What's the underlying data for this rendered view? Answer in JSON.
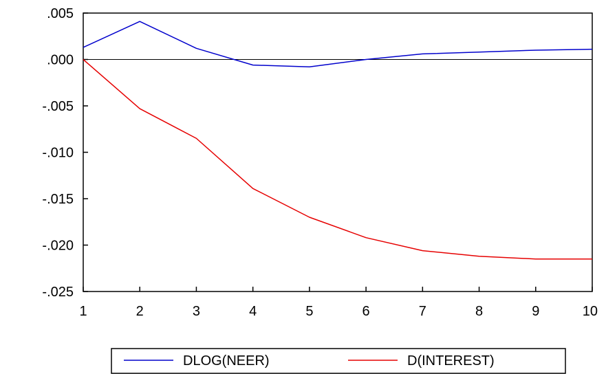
{
  "chart_data": {
    "type": "line",
    "title": "",
    "xlabel": "",
    "ylabel": "",
    "x": [
      1,
      2,
      3,
      4,
      5,
      6,
      7,
      8,
      9,
      10
    ],
    "xlim": [
      1,
      10
    ],
    "ylim": [
      -0.025,
      0.005
    ],
    "x_ticks": [
      "1",
      "2",
      "3",
      "4",
      "5",
      "6",
      "7",
      "8",
      "9",
      "10"
    ],
    "y_ticks": [
      {
        "value": 0.005,
        "label": ".005"
      },
      {
        "value": 0.0,
        "label": ".000"
      },
      {
        "value": -0.005,
        "label": "-.005"
      },
      {
        "value": -0.01,
        "label": "-.010"
      },
      {
        "value": -0.015,
        "label": "-.015"
      },
      {
        "value": -0.02,
        "label": "-.020"
      },
      {
        "value": -0.025,
        "label": "-.025"
      }
    ],
    "zero_line": true,
    "grid": false,
    "legend_position": "bottom",
    "series": [
      {
        "name": "DLOG(NEER)",
        "color": "#0000cc",
        "values": [
          0.0013,
          0.0041,
          0.0012,
          -0.0006,
          -0.0008,
          0.0,
          0.0006,
          0.0008,
          0.001,
          0.0011
        ]
      },
      {
        "name": "D(INTEREST)",
        "color": "#e60000",
        "values": [
          0.0,
          -0.0053,
          -0.0085,
          -0.0139,
          -0.017,
          -0.0192,
          -0.0206,
          -0.0212,
          -0.0215,
          -0.0215
        ]
      }
    ]
  }
}
